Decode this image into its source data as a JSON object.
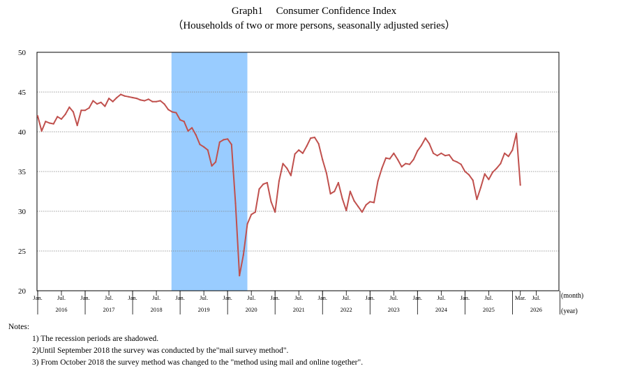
{
  "title": "Graph1　 Consumer Confidence Index",
  "subtitle": "（Households of two or more persons, seasonally adjusted series）",
  "chart_data": {
    "type": "line",
    "title": "Consumer Confidence Index",
    "xlabel": "(month)",
    "xlabel2": "(year)",
    "ylabel": "",
    "ylim": [
      20,
      50
    ],
    "yticks": [
      20,
      25,
      30,
      35,
      40,
      45,
      50
    ],
    "x_start": "2016-01",
    "month_ticks": [
      {
        "index": 0,
        "label": "Jan."
      },
      {
        "index": 6,
        "label": "Jul."
      },
      {
        "index": 12,
        "label": "Jan."
      },
      {
        "index": 18,
        "label": "Jul."
      },
      {
        "index": 24,
        "label": "Jan."
      },
      {
        "index": 30,
        "label": "Jul."
      },
      {
        "index": 36,
        "label": "Jan."
      },
      {
        "index": 42,
        "label": "Jul."
      },
      {
        "index": 48,
        "label": "Jan."
      },
      {
        "index": 54,
        "label": "Jul."
      },
      {
        "index": 60,
        "label": "Jan."
      },
      {
        "index": 66,
        "label": "Jul."
      },
      {
        "index": 72,
        "label": "Jan."
      },
      {
        "index": 78,
        "label": "Jul."
      },
      {
        "index": 84,
        "label": "Jan."
      },
      {
        "index": 90,
        "label": "Jul."
      },
      {
        "index": 96,
        "label": "Jan."
      },
      {
        "index": 102,
        "label": "Jul."
      },
      {
        "index": 108,
        "label": "Jan."
      },
      {
        "index": 114,
        "label": "Jul."
      },
      {
        "index": 122,
        "label": "Mar."
      },
      {
        "index": 126,
        "label": "Jul."
      }
    ],
    "year_labels": [
      {
        "index": 6,
        "label": "2016"
      },
      {
        "index": 18,
        "label": "2017"
      },
      {
        "index": 30,
        "label": "2018"
      },
      {
        "index": 42,
        "label": "2019"
      },
      {
        "index": 54,
        "label": "2020"
      },
      {
        "index": 66,
        "label": "2021"
      },
      {
        "index": 78,
        "label": "2022"
      },
      {
        "index": 90,
        "label": "2023"
      },
      {
        "index": 102,
        "label": "2024"
      },
      {
        "index": 114,
        "label": "2025"
      },
      {
        "index": 126,
        "label": "2026"
      }
    ],
    "recession_shading": {
      "start_index": 34,
      "end_index": 53
    },
    "series": [
      {
        "name": "Consumer Confidence Index",
        "color": "#c0504d",
        "values": [
          42.0,
          40.1,
          41.3,
          41.1,
          41.0,
          41.9,
          41.6,
          42.2,
          43.1,
          42.5,
          40.8,
          42.7,
          42.7,
          43.0,
          43.9,
          43.5,
          43.7,
          43.2,
          44.2,
          43.8,
          44.3,
          44.7,
          44.5,
          44.4,
          44.3,
          44.2,
          44.0,
          43.9,
          44.1,
          43.8,
          43.8,
          43.9,
          43.5,
          42.8,
          42.5,
          42.4,
          41.5,
          41.3,
          40.1,
          40.5,
          39.6,
          38.4,
          38.1,
          37.7,
          35.7,
          36.2,
          38.7,
          39.0,
          39.1,
          38.4,
          31.0,
          21.9,
          24.5,
          28.4,
          29.6,
          29.9,
          32.8,
          33.4,
          33.6,
          31.2,
          29.9,
          33.8,
          36.0,
          35.4,
          34.5,
          37.2,
          37.7,
          37.3,
          38.2,
          39.2,
          39.3,
          38.5,
          36.5,
          34.8,
          32.2,
          32.5,
          33.6,
          31.6,
          30.1,
          32.5,
          31.3,
          30.6,
          29.9,
          30.8,
          31.2,
          31.1,
          33.8,
          35.4,
          36.7,
          36.6,
          37.3,
          36.5,
          35.6,
          36.0,
          35.9,
          36.5,
          37.6,
          38.3,
          39.2,
          38.5,
          37.3,
          37.0,
          37.3,
          37.0,
          37.1,
          36.4,
          36.2,
          35.9,
          35.0,
          34.6,
          33.9,
          31.5,
          33.0,
          34.7,
          34.0,
          34.9,
          35.4,
          36.0,
          37.3,
          36.9,
          37.7,
          39.8,
          33.3
        ]
      }
    ]
  },
  "notes": {
    "header": "Notes:",
    "items": [
      "1) The recession periods are shadowed.",
      "2)Until September 2018 the survey was conducted by the\"mail survey method\".",
      "3) From October 2018 the survey method was changed to the \"method using mail and online together\"."
    ]
  },
  "colors": {
    "line": "#c0504d",
    "shade": "#99ccff",
    "grid": "#808080"
  }
}
